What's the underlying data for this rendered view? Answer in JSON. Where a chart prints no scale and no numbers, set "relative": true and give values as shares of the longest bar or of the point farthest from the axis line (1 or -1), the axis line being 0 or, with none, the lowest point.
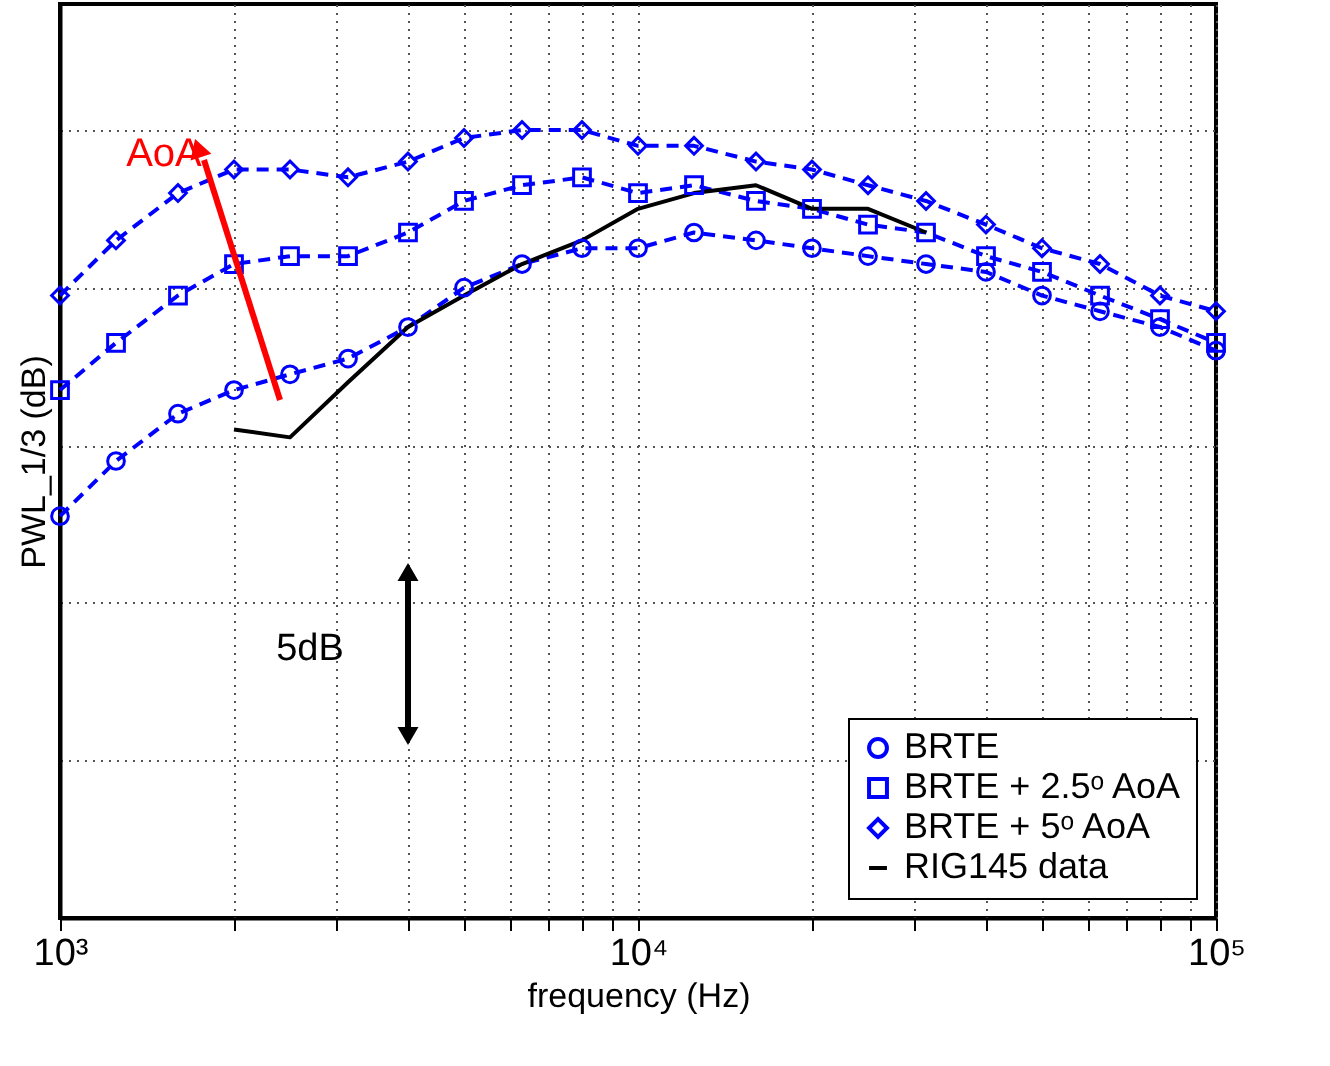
{
  "chart_data": {
    "type": "line",
    "relative": true,
    "xlabel": "frequency (Hz)",
    "ylabel": "PWL_1/3 (dB)",
    "x": [
      1000,
      1250,
      1600,
      2000,
      2500,
      3150,
      4000,
      5000,
      6300,
      8000,
      10000,
      12500,
      16000,
      20000,
      25000,
      31500,
      40000,
      50000,
      63000,
      80000,
      100000
    ],
    "log": "x",
    "xlim": [
      1000,
      100000
    ],
    "xticks": [
      {
        "value": 1000,
        "label": "10³"
      },
      {
        "value": 2000,
        "label": null
      },
      {
        "value": 3000,
        "label": null
      },
      {
        "value": 4000,
        "label": null
      },
      {
        "value": 5000,
        "label": null
      },
      {
        "value": 6000,
        "label": null
      },
      {
        "value": 7000,
        "label": null
      },
      {
        "value": 8000,
        "label": null
      },
      {
        "value": 9000,
        "label": null
      },
      {
        "value": 10000,
        "label": "10⁴"
      },
      {
        "value": 20000,
        "label": null
      },
      {
        "value": 30000,
        "label": null
      },
      {
        "value": 40000,
        "label": null
      },
      {
        "value": 50000,
        "label": null
      },
      {
        "value": 60000,
        "label": null
      },
      {
        "value": 70000,
        "label": null
      },
      {
        "value": 80000,
        "label": null
      },
      {
        "value": 90000,
        "label": null
      },
      {
        "value": 100000,
        "label": "10⁵"
      }
    ],
    "grid": true,
    "legend": "bottom right",
    "series": [
      {
        "name": "BRTE",
        "color": "#0000ff",
        "marker": "circle",
        "line_style": "dashed",
        "values": [
          0.51,
          0.58,
          0.64,
          0.67,
          0.69,
          0.71,
          0.75,
          0.8,
          0.83,
          0.85,
          0.85,
          0.87,
          0.86,
          0.85,
          0.84,
          0.83,
          0.82,
          0.79,
          0.77,
          0.75,
          0.72
        ]
      },
      {
        "name": "BRTE + 2.5ᵒ AoA",
        "color": "#0000ff",
        "marker": "square",
        "line_style": "dashed",
        "values": [
          0.67,
          0.73,
          0.79,
          0.83,
          0.84,
          0.84,
          0.87,
          0.91,
          0.93,
          0.94,
          0.92,
          0.93,
          0.91,
          0.9,
          0.88,
          0.87,
          0.84,
          0.82,
          0.79,
          0.76,
          0.73
        ]
      },
      {
        "name": "BRTE + 5ᵒ AoA",
        "color": "#0000ff",
        "marker": "diamond",
        "line_style": "dashed",
        "values": [
          0.79,
          0.86,
          0.92,
          0.95,
          0.95,
          0.94,
          0.96,
          0.99,
          1.0,
          1.0,
          0.98,
          0.98,
          0.96,
          0.95,
          0.93,
          0.91,
          0.88,
          0.85,
          0.83,
          0.79,
          0.77
        ]
      },
      {
        "name": "RIG145 data",
        "color": "#000000",
        "marker": "none",
        "line_style": "solid",
        "x": [
          2000,
          2500,
          3150,
          4000,
          5000,
          6300,
          8000,
          10000,
          12500,
          16000,
          20000,
          25000,
          31500
        ],
        "values": [
          0.62,
          0.61,
          0.68,
          0.75,
          0.79,
          0.83,
          0.86,
          0.9,
          0.92,
          0.93,
          0.9,
          0.9,
          0.87
        ]
      }
    ],
    "annotations": [
      "AoA",
      "5dB"
    ]
  }
}
